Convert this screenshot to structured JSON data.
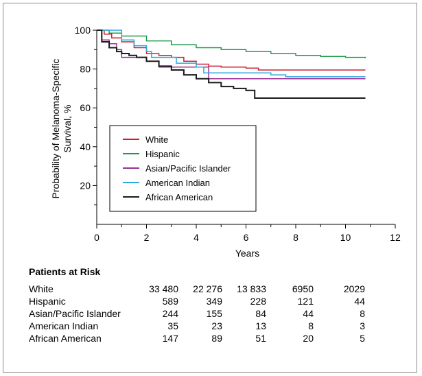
{
  "chart_data": {
    "type": "line",
    "xlabel": "Years",
    "ylabel": "Probability of Melanoma-Specific Survival, %",
    "xlim": [
      0,
      12
    ],
    "ylim": [
      0,
      100
    ],
    "xticks": [
      0,
      2,
      4,
      6,
      8,
      10,
      12
    ],
    "yticks": [
      20,
      40,
      60,
      80,
      100
    ],
    "grid": false,
    "legend_position": "left-middle",
    "series": [
      {
        "name": "White",
        "color": "#d0202e",
        "x": [
          0,
          0.3,
          0.6,
          1.0,
          1.5,
          2.0,
          2.5,
          3.0,
          3.5,
          4.0,
          4.5,
          5.0,
          5.5,
          6.0,
          6.5,
          7.0,
          8.0,
          9.0,
          10.0,
          10.8
        ],
        "y": [
          100,
          98,
          96,
          94,
          91,
          88,
          87,
          86,
          84,
          82.5,
          81.5,
          81,
          81,
          80.5,
          79.5,
          79.5,
          79.5,
          79.5,
          79.5,
          79.5
        ]
      },
      {
        "name": "Hispanic",
        "color": "#1e9b4a",
        "x": [
          0,
          0.5,
          1,
          2,
          3,
          4,
          5,
          6,
          7,
          8,
          9,
          10,
          10.8
        ],
        "y": [
          100,
          98.5,
          97,
          94.5,
          92.5,
          91,
          90,
          89,
          88,
          87,
          86.5,
          86,
          85.5
        ]
      },
      {
        "name": "Asian/Pacific Islander",
        "color": "#9a2f96",
        "x": [
          0,
          0.2,
          0.5,
          0.8,
          1.0,
          1.5,
          2.0,
          2.5,
          4.0,
          4.3,
          4.5,
          10.8
        ],
        "y": [
          100,
          95,
          93,
          90,
          86,
          86,
          84,
          81,
          81,
          81,
          75,
          75
        ]
      },
      {
        "name": "American Indian",
        "color": "#2aa9e0",
        "x": [
          0,
          1,
          1.5,
          2.0,
          2.2,
          3.0,
          3.2,
          4.0,
          4.3,
          6.8,
          7.0,
          7.5,
          7.6,
          10.8
        ],
        "y": [
          100,
          95,
          92,
          89,
          86,
          86,
          83,
          81,
          78,
          78,
          77,
          77,
          76,
          76
        ]
      },
      {
        "name": "African American",
        "color": "#1a1a1a",
        "x": [
          0,
          0.2,
          0.5,
          0.8,
          1.0,
          1.3,
          1.6,
          2.0,
          2.5,
          3.0,
          3.5,
          4.0,
          4.5,
          5.0,
          5.5,
          6.0,
          6.3,
          6.35,
          10.8
        ],
        "y": [
          100,
          94,
          91,
          89,
          88,
          87,
          86,
          84,
          81.5,
          79.5,
          77,
          75,
          73,
          71,
          70,
          69,
          69,
          65,
          65
        ]
      }
    ]
  },
  "risk_table": {
    "title": "Patients at Risk",
    "rows": [
      {
        "label": "White",
        "values": [
          "33 480",
          "22 276",
          "13 833",
          "6950",
          "2029"
        ]
      },
      {
        "label": "Hispanic",
        "values": [
          "589",
          "349",
          "228",
          "121",
          "44"
        ]
      },
      {
        "label": "Asian/Pacific Islander",
        "values": [
          "244",
          "155",
          "84",
          "44",
          "8"
        ]
      },
      {
        "label": "American Indian",
        "values": [
          "35",
          "23",
          "13",
          "8",
          "3"
        ]
      },
      {
        "label": "African American",
        "values": [
          "147",
          "89",
          "51",
          "20",
          "5"
        ]
      }
    ]
  }
}
